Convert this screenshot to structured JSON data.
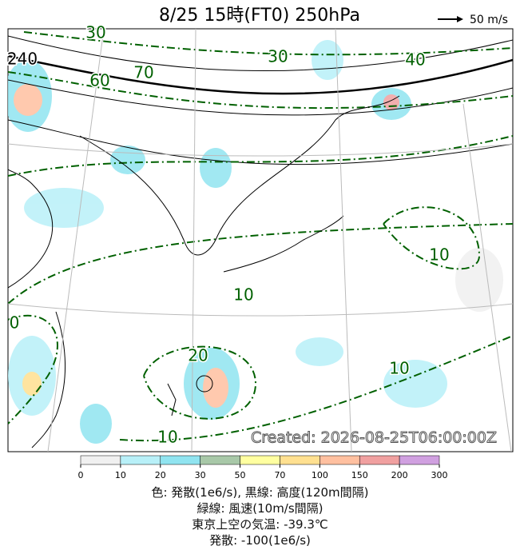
{
  "header": {
    "title": "8/25  15時(FT0)    250hPa",
    "arrow_legend": "50 m/s"
  },
  "map": {
    "created": "Created: 2026-08-25T06:00:00Z",
    "contour_labels": [
      "30",
      "240",
      "60",
      "70",
      "30",
      "40",
      "10",
      "10",
      "0",
      "20",
      "10",
      "10"
    ]
  },
  "colorbar": {
    "ticks": [
      0,
      10,
      20,
      30,
      50,
      70,
      100,
      150,
      200,
      300
    ],
    "colors": [
      "#f0f0f0",
      "#b8f0f8",
      "#90e4f0",
      "#a8c8a8",
      "#ffffa0",
      "#ffe090",
      "#ffc0a0",
      "#f0a0a0",
      "#d0a0e0"
    ]
  },
  "captions": [
    "色: 発散(1e6/s),  黒線: 高度(120m間隔)",
    "緑線: 風速(10m/s間隔)",
    "東京上空の気温: -39.3℃",
    "発散: -100(1e6/s)"
  ]
}
